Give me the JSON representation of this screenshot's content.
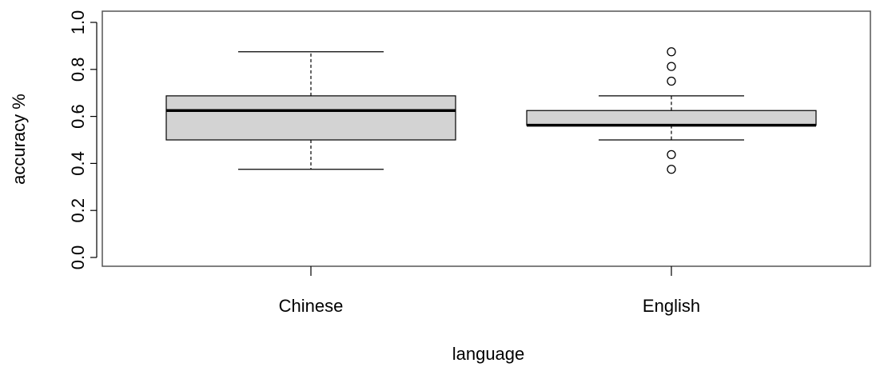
{
  "chart_data": {
    "type": "boxplot",
    "xlabel": "language",
    "ylabel": "accuracy %",
    "ylim": [
      0.0,
      1.0
    ],
    "yticks": [
      "0.0",
      "0.2",
      "0.4",
      "0.6",
      "0.8",
      "1.0"
    ],
    "categories": [
      "Chinese",
      "English"
    ],
    "boxes": [
      {
        "category": "Chinese",
        "whisker_low": 0.375,
        "q1": 0.5,
        "median": 0.625,
        "q3": 0.6875,
        "whisker_high": 0.875,
        "outliers": []
      },
      {
        "category": "English",
        "whisker_low": 0.5,
        "q1": 0.5625,
        "median": 0.5625,
        "q3": 0.625,
        "whisker_high": 0.6875,
        "outliers": [
          0.375,
          0.4375,
          0.75,
          0.8125,
          0.875
        ]
      }
    ],
    "box_fill": "#d3d3d3",
    "grid": false,
    "legend": "none"
  }
}
